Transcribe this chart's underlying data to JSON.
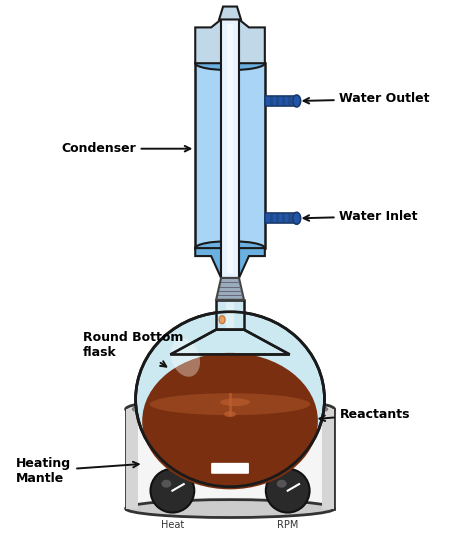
{
  "background_color": "#ffffff",
  "labels": {
    "water_outlet": "Water Outlet",
    "condenser": "Condenser",
    "water_inlet": "Water Inlet",
    "round_bottom_flask": "Round Bottom\nflask",
    "reactants": "Reactants",
    "heating_mantle": "Heating\nMantle",
    "heat": "Heat",
    "rpm": "RPM"
  },
  "colors": {
    "condenser_water": "#6ab0e0",
    "condenser_water_light": "#a8d4f5",
    "condenser_outline": "#1a1a1a",
    "inner_tube": "#e8f4ff",
    "flask_glass": "#cce8f0",
    "flask_outline": "#1a1a1a",
    "reactant_dark": "#7a3010",
    "reactant_mid": "#9b4820",
    "reactant_light": "#c06030",
    "mantle_body": "#e8e8e8",
    "mantle_white": "#f5f5f5",
    "mantle_outline": "#333333",
    "knob_dark": "#3a3a3a",
    "knob_mid": "#555555",
    "display_blue": "#5599cc",
    "connector_dark": "#1a3a6a",
    "connector_blue": "#2255aa",
    "arrow_color": "#111111",
    "joint_gray": "#7a8a9a",
    "glass_top": "#c0d8e8"
  },
  "figsize": [
    4.74,
    5.34
  ],
  "dpi": 100
}
